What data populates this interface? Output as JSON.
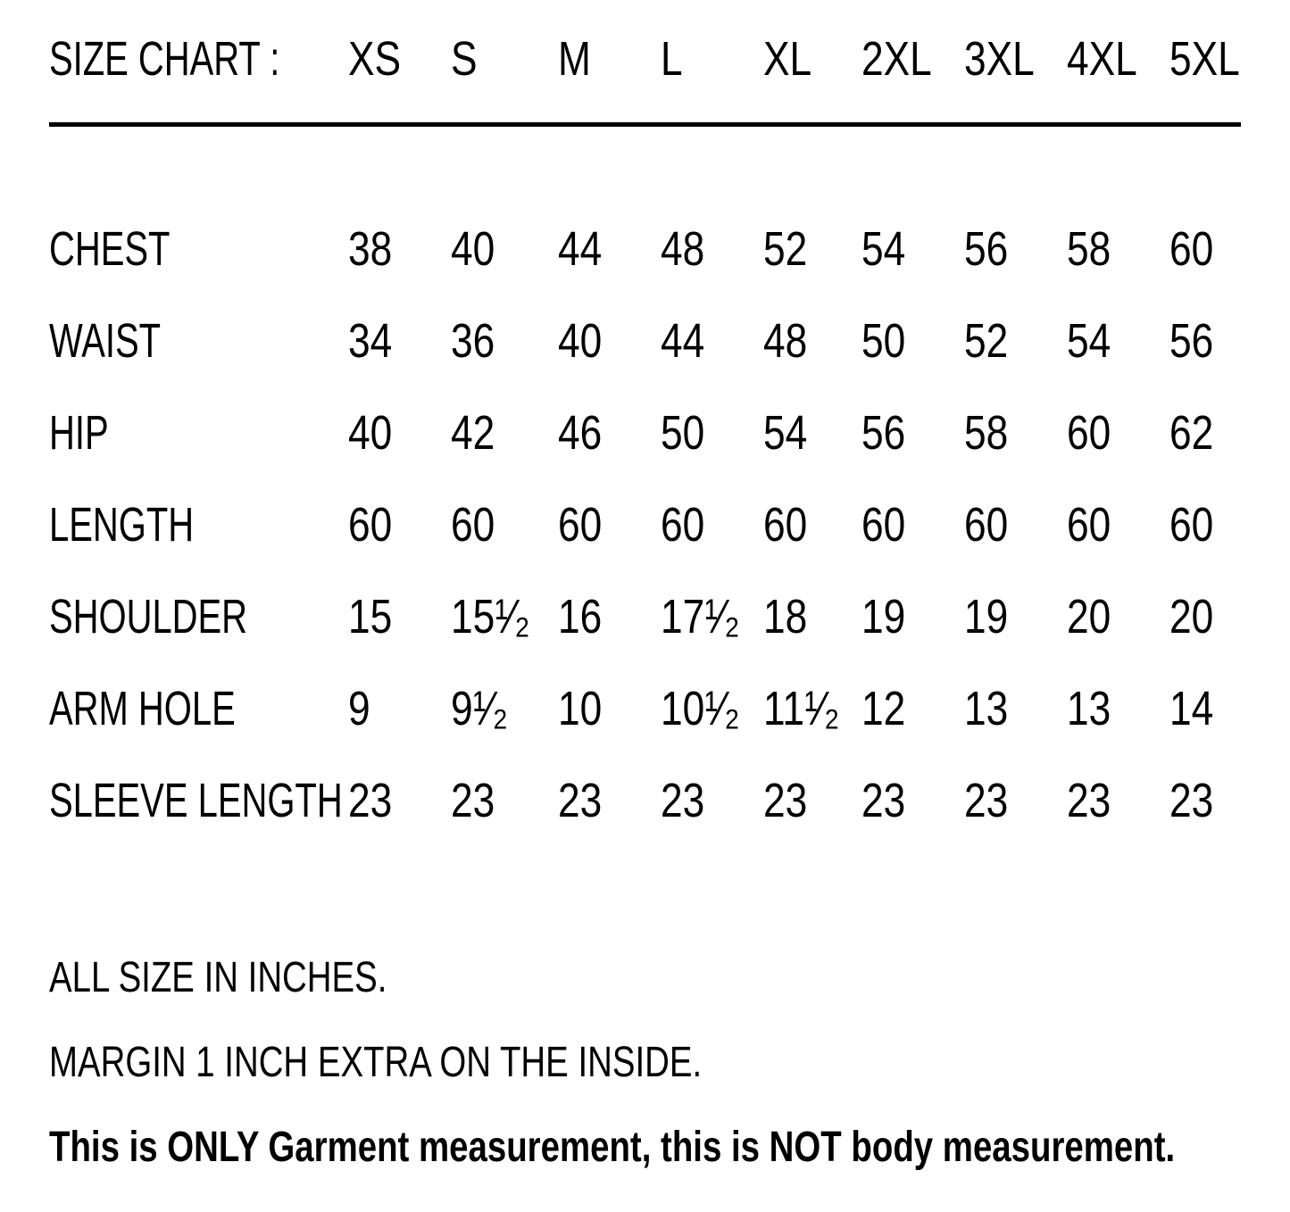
{
  "title": "SIZE CHART :",
  "table": {
    "columns": [
      "XS",
      "S",
      "M",
      "L",
      "XL",
      "2XL",
      "3XL",
      "4XL",
      "5XL"
    ],
    "rows": [
      {
        "label": "CHEST",
        "values": [
          "38",
          "40",
          "44",
          "48",
          "52",
          "54",
          "56",
          "58",
          "60"
        ]
      },
      {
        "label": "WAIST",
        "values": [
          "34",
          "36",
          "40",
          "44",
          "48",
          "50",
          "52",
          "54",
          "56"
        ]
      },
      {
        "label": "HIP",
        "values": [
          "40",
          "42",
          "46",
          "50",
          "54",
          "56",
          "58",
          "60",
          "62"
        ]
      },
      {
        "label": "LENGTH",
        "values": [
          "60",
          "60",
          "60",
          "60",
          "60",
          "60",
          "60",
          "60",
          "60"
        ]
      },
      {
        "label": "SHOULDER",
        "values": [
          "15",
          "15¹⁄₂",
          "16",
          "17¹⁄₂",
          "18",
          "19",
          "19",
          "20",
          "20"
        ]
      },
      {
        "label": "ARM HOLE",
        "values": [
          "9",
          "9¹⁄₂",
          "10",
          "10¹⁄₂",
          "11¹⁄₂",
          "12",
          "13",
          "13",
          "14"
        ]
      },
      {
        "label": "SLEEVE LENGTH",
        "values": [
          "23",
          "23",
          "23",
          "23",
          "23",
          "23",
          "23",
          "23",
          "23"
        ]
      }
    ]
  },
  "notes": [
    "ALL SIZE IN INCHES.",
    "MARGIN 1 INCH EXTRA ON THE INSIDE.",
    "This is ONLY Garment measurement, this is NOT body measurement."
  ],
  "colors": {
    "text": "#000000",
    "background": "#ffffff",
    "rule": "#000000"
  }
}
